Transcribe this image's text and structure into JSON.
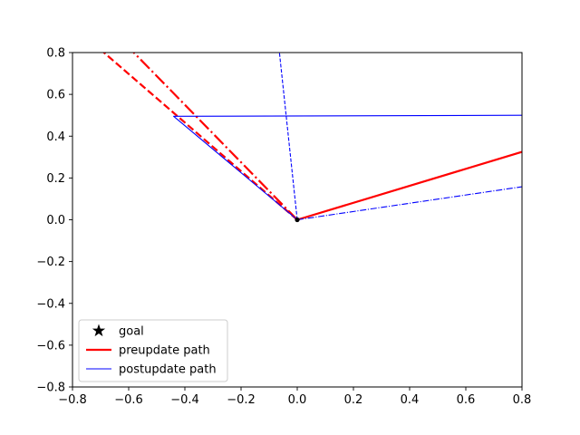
{
  "chart_data": {
    "type": "line",
    "title": "",
    "xlabel": "",
    "ylabel": "",
    "xlim": [
      -0.8,
      0.8
    ],
    "ylim": [
      -0.8,
      0.8
    ],
    "xticks": [
      -0.8,
      -0.6,
      -0.4,
      -0.2,
      0.0,
      0.2,
      0.4,
      0.6,
      0.8
    ],
    "yticks": [
      -0.8,
      -0.6,
      -0.4,
      -0.2,
      0.0,
      0.2,
      0.4,
      0.6,
      0.8
    ],
    "xtick_labels": [
      "−0.8",
      "−0.6",
      "−0.4",
      "−0.2",
      "0.0",
      "0.2",
      "0.4",
      "0.6",
      "0.8"
    ],
    "ytick_labels": [
      "−0.8",
      "−0.6",
      "−0.4",
      "−0.2",
      "0.0",
      "0.2",
      "0.4",
      "0.6",
      "0.8"
    ],
    "grid": false,
    "legend_position": "lower-left",
    "goal": {
      "x": 0.0,
      "y": 0.0,
      "color": "#000000"
    },
    "series": [
      {
        "group": "preupdate",
        "style": "solid",
        "color": "#ff0000",
        "width": 2.2,
        "x": [
          0.0,
          0.8
        ],
        "y": [
          0.0,
          0.325
        ]
      },
      {
        "group": "preupdate",
        "style": "dashed",
        "color": "#ff0000",
        "width": 2.2,
        "x": [
          0.0,
          -0.8
        ],
        "y": [
          0.0,
          0.93
        ]
      },
      {
        "group": "preupdate",
        "style": "dashdot",
        "color": "#ff0000",
        "width": 2.2,
        "x": [
          0.0,
          -0.8
        ],
        "y": [
          0.0,
          1.1
        ]
      },
      {
        "group": "postupdate",
        "style": "solid",
        "color": "#0000ff",
        "width": 1.1,
        "x": [
          0.0,
          -0.44,
          0.8
        ],
        "y": [
          0.0,
          0.495,
          0.5
        ]
      },
      {
        "group": "postupdate",
        "style": "dashed",
        "color": "#0000ff",
        "width": 1.1,
        "x": [
          0.0,
          -0.065
        ],
        "y": [
          0.0,
          0.82
        ]
      },
      {
        "group": "postupdate",
        "style": "dashdot",
        "color": "#0000ff",
        "width": 1.1,
        "x": [
          0.0,
          0.8
        ],
        "y": [
          0.0,
          0.158
        ]
      }
    ],
    "legend": [
      {
        "label": "goal",
        "marker": "star",
        "color": "#000000"
      },
      {
        "label": "preupdate path",
        "line": "solid",
        "color": "#ff0000",
        "width": 2.2
      },
      {
        "label": "postupdate path",
        "line": "solid",
        "color": "#0000ff",
        "width": 1.1
      }
    ]
  }
}
